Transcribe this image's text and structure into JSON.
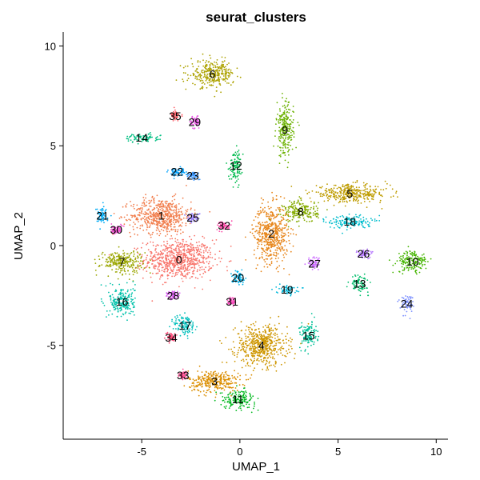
{
  "chart_data": {
    "type": "scatter",
    "title": "seurat_clusters",
    "xlabel": "UMAP_1",
    "ylabel": "UMAP_2",
    "xlim": [
      -9,
      10.6
    ],
    "ylim": [
      -9.7,
      10.7
    ],
    "xticks": [
      {
        "value": -5,
        "label": "-5"
      },
      {
        "value": 0,
        "label": "0"
      },
      {
        "value": 5,
        "label": "5"
      },
      {
        "value": 10,
        "label": "10"
      }
    ],
    "yticks": [
      {
        "value": -5,
        "label": "-5"
      },
      {
        "value": 0,
        "label": "0"
      },
      {
        "value": 5,
        "label": "5"
      },
      {
        "value": 10,
        "label": "10"
      }
    ],
    "grid": false,
    "legend": "none",
    "clusters": [
      {
        "label": "0",
        "x": -3.1,
        "y": -0.7,
        "color": "#F8766D",
        "spread": [
          1.6,
          0.9
        ]
      },
      {
        "label": "1",
        "x": -4.0,
        "y": 1.5,
        "color": "#F17E4D",
        "spread": [
          1.4,
          0.8
        ]
      },
      {
        "label": "2",
        "x": 1.6,
        "y": 0.6,
        "color": "#E7861B",
        "spread": [
          0.8,
          1.3
        ]
      },
      {
        "label": "3",
        "x": -1.3,
        "y": -6.8,
        "color": "#DB8E00",
        "spread": [
          1.2,
          0.5
        ]
      },
      {
        "label": "4",
        "x": 1.1,
        "y": -5.0,
        "color": "#CE9600",
        "spread": [
          1.2,
          0.9
        ]
      },
      {
        "label": "5",
        "x": 5.6,
        "y": 2.6,
        "color": "#BE9C00",
        "spread": [
          1.8,
          0.4
        ]
      },
      {
        "label": "6",
        "x": -1.4,
        "y": 8.6,
        "color": "#ADA200",
        "spread": [
          1.0,
          0.6
        ]
      },
      {
        "label": "7",
        "x": -6.0,
        "y": -0.8,
        "color": "#9AA600",
        "spread": [
          1.0,
          0.5
        ]
      },
      {
        "label": "8",
        "x": 3.1,
        "y": 1.7,
        "color": "#85AB00",
        "spread": [
          0.8,
          0.5
        ]
      },
      {
        "label": "9",
        "x": 2.3,
        "y": 5.8,
        "color": "#6BB100",
        "spread": [
          0.4,
          1.2
        ]
      },
      {
        "label": "10",
        "x": 8.8,
        "y": -0.8,
        "color": "#45B500",
        "spread": [
          0.7,
          0.5
        ]
      },
      {
        "label": "11",
        "x": -0.1,
        "y": -7.7,
        "color": "#00B81F",
        "spread": [
          0.8,
          0.4
        ]
      },
      {
        "label": "12",
        "x": -0.2,
        "y": 4.0,
        "color": "#00BB4E",
        "spread": [
          0.3,
          0.7
        ]
      },
      {
        "label": "13",
        "x": 6.1,
        "y": -1.9,
        "color": "#00BD6B",
        "spread": [
          0.4,
          0.4
        ]
      },
      {
        "label": "14",
        "x": -5.0,
        "y": 5.4,
        "color": "#00BF82",
        "spread": [
          0.8,
          0.2
        ]
      },
      {
        "label": "15",
        "x": 3.5,
        "y": -4.5,
        "color": "#00C097",
        "spread": [
          0.4,
          0.6
        ]
      },
      {
        "label": "16",
        "x": -6.0,
        "y": -2.8,
        "color": "#00C1AA",
        "spread": [
          0.6,
          0.7
        ]
      },
      {
        "label": "17",
        "x": -2.8,
        "y": -4.0,
        "color": "#00BFBC",
        "spread": [
          0.5,
          0.5
        ]
      },
      {
        "label": "18",
        "x": 5.6,
        "y": 1.2,
        "color": "#00BDCD",
        "spread": [
          1.0,
          0.3
        ]
      },
      {
        "label": "19",
        "x": 2.4,
        "y": -2.2,
        "color": "#00B8DB",
        "spread": [
          0.5,
          0.2
        ]
      },
      {
        "label": "20",
        "x": -0.1,
        "y": -1.6,
        "color": "#00B2E9",
        "spread": [
          0.3,
          0.3
        ]
      },
      {
        "label": "21",
        "x": -7.0,
        "y": 1.5,
        "color": "#00ABF4",
        "spread": [
          0.3,
          0.4
        ]
      },
      {
        "label": "22",
        "x": -3.2,
        "y": 3.7,
        "color": "#00A2FD",
        "spread": [
          0.4,
          0.2
        ]
      },
      {
        "label": "23",
        "x": -2.4,
        "y": 3.5,
        "color": "#3D98FF",
        "spread": [
          0.3,
          0.2
        ]
      },
      {
        "label": "24",
        "x": 8.5,
        "y": -2.9,
        "color": "#798DFF",
        "spread": [
          0.3,
          0.4
        ]
      },
      {
        "label": "25",
        "x": -2.4,
        "y": 1.4,
        "color": "#9C82FF",
        "spread": [
          0.3,
          0.2
        ]
      },
      {
        "label": "26",
        "x": 6.3,
        "y": -0.4,
        "color": "#B677FF",
        "spread": [
          0.4,
          0.2
        ]
      },
      {
        "label": "27",
        "x": 3.8,
        "y": -0.9,
        "color": "#CC6CFF",
        "spread": [
          0.3,
          0.3
        ]
      },
      {
        "label": "28",
        "x": -3.4,
        "y": -2.5,
        "color": "#DC62F3",
        "spread": [
          0.3,
          0.2
        ]
      },
      {
        "label": "29",
        "x": -2.3,
        "y": 6.2,
        "color": "#E85AE4",
        "spread": [
          0.2,
          0.3
        ]
      },
      {
        "label": "30",
        "x": -6.3,
        "y": 0.8,
        "color": "#F153D1",
        "spread": [
          0.3,
          0.2
        ]
      },
      {
        "label": "31",
        "x": -0.4,
        "y": -2.8,
        "color": "#F84EBD",
        "spread": [
          0.2,
          0.2
        ]
      },
      {
        "label": "32",
        "x": -0.8,
        "y": 1.0,
        "color": "#FC4BA8",
        "spread": [
          0.3,
          0.2
        ]
      },
      {
        "label": "33",
        "x": -2.9,
        "y": -6.5,
        "color": "#FF4B91",
        "spread": [
          0.2,
          0.2
        ]
      },
      {
        "label": "34",
        "x": -3.5,
        "y": -4.6,
        "color": "#FF4E7B",
        "spread": [
          0.2,
          0.2
        ]
      },
      {
        "label": "35",
        "x": -3.3,
        "y": 6.5,
        "color": "#FD5F68",
        "spread": [
          0.2,
          0.2
        ]
      }
    ]
  }
}
